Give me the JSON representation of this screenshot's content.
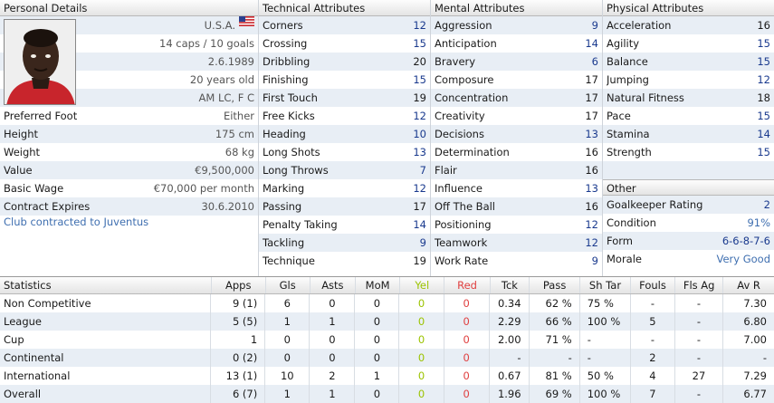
{
  "personal": {
    "header": "Personal Details",
    "nationality": "U.S.A.",
    "caps": "14 caps / 10 goals",
    "dob": "2.6.1989",
    "age": "20 years old",
    "position": "AM LC, F C",
    "rows": [
      {
        "label": "Preferred Foot",
        "value": "Either"
      },
      {
        "label": "Height",
        "value": "175 cm"
      },
      {
        "label": "Weight",
        "value": "68 kg"
      },
      {
        "label": "Value",
        "value": "€9,500,000"
      },
      {
        "label": "Basic Wage",
        "value": "€70,000 per month"
      },
      {
        "label": "Contract Expires",
        "value": "30.6.2010"
      }
    ],
    "club_link": "Club contracted to Juventus"
  },
  "technical": {
    "header": "Technical Attributes",
    "rows": [
      {
        "label": "Corners",
        "value": "12"
      },
      {
        "label": "Crossing",
        "value": "15"
      },
      {
        "label": "Dribbling",
        "value": "20"
      },
      {
        "label": "Finishing",
        "value": "15"
      },
      {
        "label": "First Touch",
        "value": "19"
      },
      {
        "label": "Free Kicks",
        "value": "12"
      },
      {
        "label": "Heading",
        "value": "10"
      },
      {
        "label": "Long Shots",
        "value": "13"
      },
      {
        "label": "Long Throws",
        "value": "7"
      },
      {
        "label": "Marking",
        "value": "12"
      },
      {
        "label": "Passing",
        "value": "17"
      },
      {
        "label": "Penalty Taking",
        "value": "14"
      },
      {
        "label": "Tackling",
        "value": "9"
      },
      {
        "label": "Technique",
        "value": "19"
      }
    ]
  },
  "mental": {
    "header": "Mental Attributes",
    "rows": [
      {
        "label": "Aggression",
        "value": "9"
      },
      {
        "label": "Anticipation",
        "value": "14"
      },
      {
        "label": "Bravery",
        "value": "6"
      },
      {
        "label": "Composure",
        "value": "17"
      },
      {
        "label": "Concentration",
        "value": "17"
      },
      {
        "label": "Creativity",
        "value": "17"
      },
      {
        "label": "Decisions",
        "value": "13"
      },
      {
        "label": "Determination",
        "value": "16"
      },
      {
        "label": "Flair",
        "value": "16"
      },
      {
        "label": "Influence",
        "value": "13"
      },
      {
        "label": "Off The Ball",
        "value": "16"
      },
      {
        "label": "Positioning",
        "value": "12"
      },
      {
        "label": "Teamwork",
        "value": "12"
      },
      {
        "label": "Work Rate",
        "value": "9"
      }
    ]
  },
  "physical": {
    "header": "Physical Attributes",
    "rows": [
      {
        "label": "Acceleration",
        "value": "16"
      },
      {
        "label": "Agility",
        "value": "15"
      },
      {
        "label": "Balance",
        "value": "15"
      },
      {
        "label": "Jumping",
        "value": "12"
      },
      {
        "label": "Natural Fitness",
        "value": "18"
      },
      {
        "label": "Pace",
        "value": "15"
      },
      {
        "label": "Stamina",
        "value": "14"
      },
      {
        "label": "Strength",
        "value": "15"
      }
    ]
  },
  "other": {
    "header": "Other",
    "rows": [
      {
        "label": "Goalkeeper Rating",
        "value": "2"
      },
      {
        "label": "Condition",
        "value": "91%"
      },
      {
        "label": "Form",
        "value": "6-6-8-7-6"
      },
      {
        "label": "Morale",
        "value": "Very Good"
      }
    ]
  },
  "statistics": {
    "headers": [
      "Statistics",
      "Apps",
      "Gls",
      "Asts",
      "MoM",
      "Yel",
      "Red",
      "Tck",
      "Pass",
      "Sh Tar",
      "Fouls",
      "Fls Ag",
      "Av R"
    ],
    "rows": [
      [
        "Non Competitive",
        "9 (1)",
        "6",
        "0",
        "0",
        "0",
        "0",
        "0.34",
        "62 %",
        "75 %",
        "-",
        "-",
        "7.30"
      ],
      [
        "League",
        "5 (5)",
        "1",
        "1",
        "0",
        "0",
        "0",
        "2.29",
        "66 %",
        "100 %",
        "5",
        "-",
        "6.80"
      ],
      [
        "Cup",
        "1",
        "0",
        "0",
        "0",
        "0",
        "0",
        "2.00",
        "71 %",
        "-",
        "-",
        "-",
        "7.00"
      ],
      [
        "Continental",
        "0 (2)",
        "0",
        "0",
        "0",
        "0",
        "0",
        "-",
        "-",
        "-",
        "2",
        "-",
        "-"
      ],
      [
        "International",
        "13 (1)",
        "10",
        "2",
        "1",
        "0",
        "0",
        "0.67",
        "81 %",
        "50 %",
        "4",
        "27",
        "7.29"
      ],
      [
        "Overall",
        "6 (7)",
        "1",
        "1",
        "0",
        "0",
        "0",
        "1.96",
        "69 %",
        "100 %",
        "7",
        "-",
        "6.77"
      ]
    ]
  },
  "colors": {
    "row_alt": "#e8eef5",
    "value_blue": "#1a3a8e",
    "yellow_card": "#9bc300",
    "red_card": "#e04040",
    "link": "#3f6fb0"
  }
}
